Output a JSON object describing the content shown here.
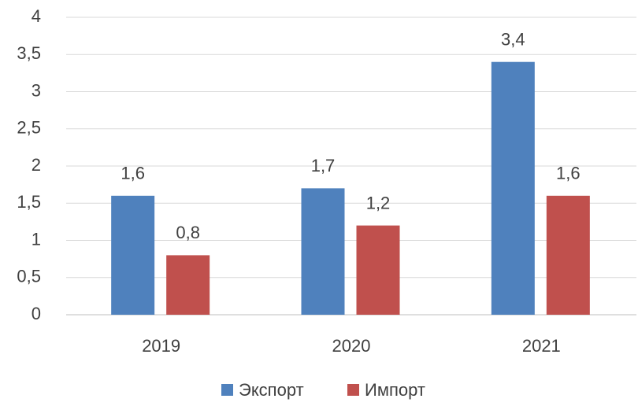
{
  "chart_data": {
    "type": "bar",
    "categories": [
      "2019",
      "2020",
      "2021"
    ],
    "series": [
      {
        "name": "Экспорт",
        "color": "#4f81bd",
        "values": [
          1.6,
          1.7,
          3.4
        ],
        "value_labels": [
          "1,6",
          "1,7",
          "3,4"
        ]
      },
      {
        "name": "Импорт",
        "color": "#c0504d",
        "values": [
          0.8,
          1.2,
          1.6
        ],
        "value_labels": [
          "0,8",
          "1,2",
          "1,6"
        ]
      }
    ],
    "ylim": [
      0,
      4
    ],
    "yticks": [
      0,
      {
        "value": 0.5,
        "label": "0,5"
      },
      1,
      {
        "value": 1.5,
        "label": "1,5"
      },
      2,
      {
        "value": 2.5,
        "label": "2,5"
      },
      3,
      {
        "value": 3.5,
        "label": "3,5"
      },
      4
    ],
    "grid": true,
    "legend": "bottom"
  }
}
